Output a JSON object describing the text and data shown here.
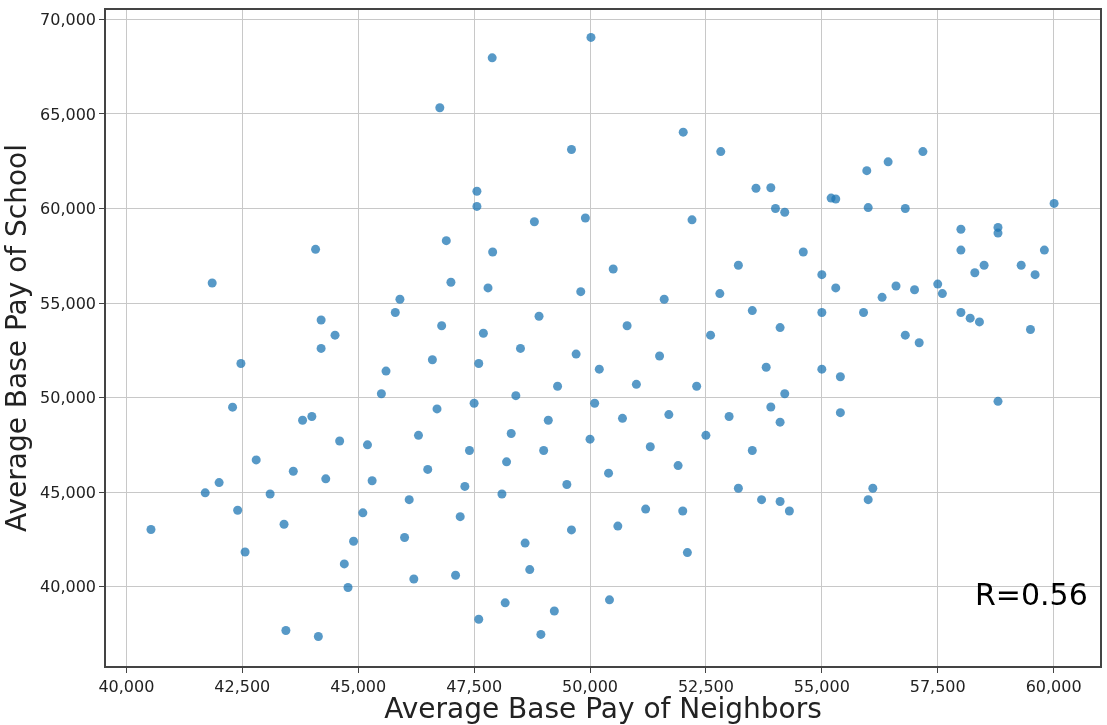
{
  "chart_data": {
    "type": "scatter",
    "xlabel": "Average Base Pay of Neighbors",
    "ylabel": "Average Base Pay of School",
    "annotations": [
      "R=0.56"
    ],
    "xlim": [
      39560,
      61000
    ],
    "ylim": [
      35800,
      70500
    ],
    "xticks": [
      {
        "value": 40000,
        "label": "40,000"
      },
      {
        "value": 42500,
        "label": "42,500"
      },
      {
        "value": 45000,
        "label": "45,000"
      },
      {
        "value": 47500,
        "label": "47,500"
      },
      {
        "value": 50000,
        "label": "50,000"
      },
      {
        "value": 52500,
        "label": "52,500"
      },
      {
        "value": 55000,
        "label": "55,000"
      },
      {
        "value": 57500,
        "label": "57,500"
      },
      {
        "value": 60000,
        "label": "60,000"
      }
    ],
    "yticks": [
      {
        "value": 40000,
        "label": "40,000"
      },
      {
        "value": 45000,
        "label": "45,000"
      },
      {
        "value": 50000,
        "label": "50,000"
      },
      {
        "value": 55000,
        "label": "55,000"
      },
      {
        "value": 60000,
        "label": "60,000"
      },
      {
        "value": 65000,
        "label": "65,000"
      },
      {
        "value": 70000,
        "label": "70,000"
      }
    ],
    "grid": true,
    "marker": "circle",
    "series": [
      {
        "color": "#1f77b4",
        "x": [
          40530,
          41700,
          41850,
          42290,
          42470,
          42400,
          42560,
          43440,
          44140,
          44080,
          46760,
          47890,
          50020,
          49600,
          52010,
          52820,
          47560,
          47560,
          55970,
          56430,
          57180,
          60010,
          53580,
          47600,
          48170,
          48940,
          49230,
          50420,
          44780,
          55200,
          55300,
          56000,
          56800,
          58000,
          58800,
          58800,
          59800,
          59600,
          59300,
          58500,
          58300,
          58000,
          57500,
          57600,
          57000,
          56300,
          56600,
          55900,
          55000,
          55000,
          54600,
          55300,
          54200,
          54000,
          53900,
          53200,
          58000,
          58400,
          58200,
          59500,
          58800,
          56800,
          57100,
          55400,
          55400,
          56000,
          56100,
          54300,
          54100,
          53700,
          53200,
          53900,
          54100,
          54200,
          53500,
          53800,
          54100,
          53500,
          55000,
          42000,
          42800,
          43100,
          43400,
          43600,
          43800,
          44000,
          44200,
          44200,
          44500,
          44300,
          44600,
          44700,
          44900,
          45100,
          45300,
          45200,
          45500,
          45600,
          45800,
          45900,
          46000,
          46200,
          46100,
          46300,
          46500,
          46700,
          46600,
          46800,
          46900,
          47000,
          47100,
          47200,
          47300,
          47400,
          47500,
          47600,
          47700,
          47800,
          47900,
          48100,
          48200,
          48300,
          48400,
          48500,
          48600,
          48700,
          48800,
          48900,
          49000,
          49100,
          49300,
          49500,
          49600,
          49700,
          49800,
          49900,
          50000,
          50100,
          50200,
          50400,
          50500,
          50600,
          50700,
          50800,
          51000,
          51200,
          51300,
          51500,
          51600,
          51700,
          51900,
          52000,
          52100,
          52200,
          52300,
          52500,
          52600,
          52800,
          53000
        ],
        "values": [
          43020,
          44960,
          56060,
          49490,
          51800,
          44040,
          41830,
          37680,
          37360,
          57840,
          65330,
          67970,
          69050,
          63120,
          64040,
          63010,
          60910,
          60110,
          62000,
          62470,
          63010,
          60270,
          61070,
          38270,
          39140,
          37470,
          38710,
          39300,
          39950,
          60550,
          60500,
          60050,
          60000,
          58900,
          59000,
          58700,
          57800,
          56500,
          57000,
          57000,
          56600,
          57800,
          56000,
          55500,
          55700,
          55300,
          55900,
          54500,
          54500,
          56500,
          57700,
          55800,
          59800,
          60000,
          61100,
          57000,
          54500,
          54000,
          54200,
          53600,
          49800,
          53300,
          52900,
          51100,
          49200,
          44600,
          45200,
          44000,
          44500,
          44600,
          45200,
          49500,
          48700,
          50200,
          47200,
          51600,
          53700,
          54600,
          51500,
          45500,
          46700,
          44900,
          43300,
          46100,
          48800,
          49000,
          52600,
          54100,
          53300,
          45700,
          47700,
          41200,
          42400,
          43900,
          45600,
          47500,
          50200,
          51400,
          54500,
          55200,
          42600,
          40400,
          44600,
          48000,
          46200,
          49400,
          52000,
          53800,
          58300,
          56100,
          40600,
          43700,
          45300,
          47200,
          49700,
          51800,
          53400,
          55800,
          57700,
          44900,
          46600,
          48100,
          50100,
          52600,
          42300,
          40900,
          59300,
          54300,
          47200,
          48800,
          50600,
          45400,
          43000,
          52300,
          55600,
          59500,
          47800,
          49700,
          51500,
          46000,
          56800,
          43200,
          48900,
          53800,
          50700,
          44100,
          47400,
          52200,
          55200,
          49100,
          46400,
          44000,
          41800,
          59400,
          50600,
          48000,
          53300,
          55500,
          49000
        ]
      }
    ]
  }
}
